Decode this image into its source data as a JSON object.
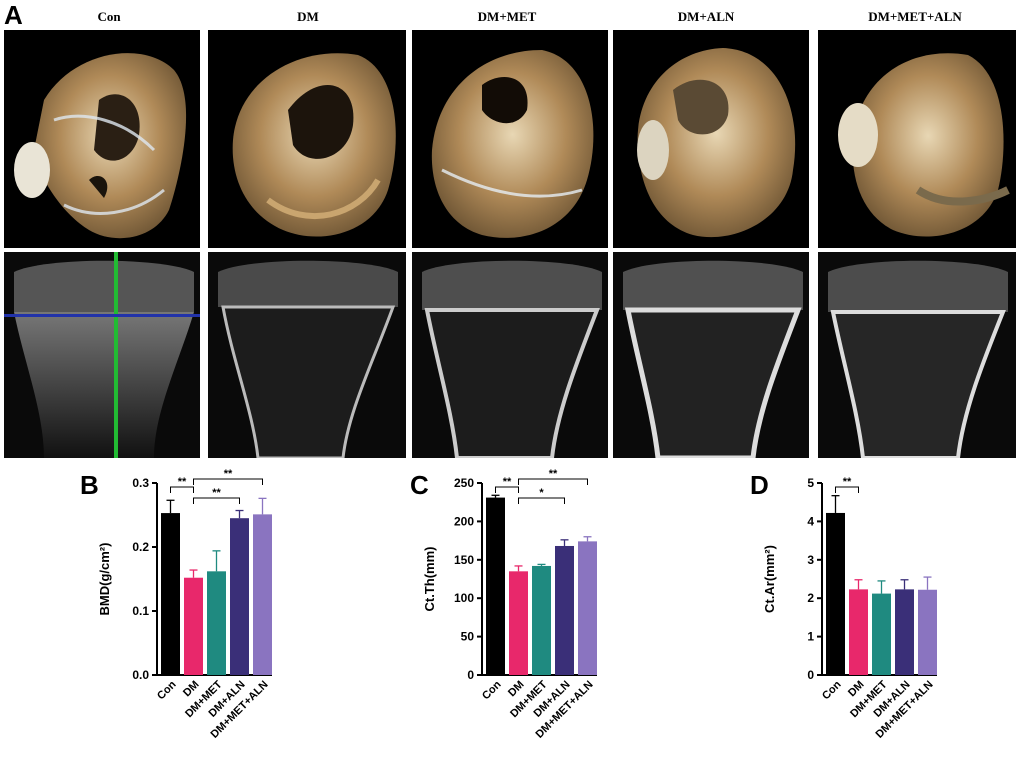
{
  "figure": {
    "panel_labels": {
      "a": "A",
      "b": "B",
      "c": "C",
      "d": "D"
    },
    "groups": [
      "Con",
      "DM",
      "DM+MET",
      "DM+ALN",
      "DM+MET+ALN"
    ],
    "group_colors": [
      "#000000",
      "#e8286b",
      "#1f8a80",
      "#3a2f78",
      "#8a74c0"
    ]
  },
  "chart_data": [
    {
      "panel": "B",
      "type": "bar",
      "categories": [
        "Con",
        "DM",
        "DM+MET",
        "DM+ALN",
        "DM+MET+ALN"
      ],
      "values": [
        0.253,
        0.152,
        0.162,
        0.245,
        0.251
      ],
      "errors": [
        0.02,
        0.012,
        0.032,
        0.012,
        0.025
      ],
      "ylabel": "BMD(g/cm²)",
      "ylim": [
        0,
        0.3
      ],
      "yticks": [
        "0.0",
        "0.1",
        "0.2",
        "0.3"
      ],
      "significance": [
        {
          "from": 0,
          "to": 1,
          "label": "**"
        },
        {
          "from": 1,
          "to": 4,
          "label": "**"
        },
        {
          "from": 1,
          "to": 3,
          "label": "**"
        }
      ]
    },
    {
      "panel": "C",
      "type": "bar",
      "categories": [
        "Con",
        "DM",
        "DM+MET",
        "DM+ALN",
        "DM+MET+ALN"
      ],
      "values": [
        231,
        135,
        142,
        168,
        174
      ],
      "errors": [
        3,
        7,
        2,
        8,
        6
      ],
      "ylabel": "Ct.Th(mm)",
      "ylim": [
        0,
        250
      ],
      "yticks": [
        "0",
        "50",
        "100",
        "150",
        "200",
        "250"
      ],
      "significance": [
        {
          "from": 0,
          "to": 1,
          "label": "**"
        },
        {
          "from": 1,
          "to": 4,
          "label": "**"
        },
        {
          "from": 1,
          "to": 3,
          "label": "*"
        }
      ]
    },
    {
      "panel": "D",
      "type": "bar",
      "categories": [
        "Con",
        "DM",
        "DM+MET",
        "DM+ALN",
        "DM+MET+ALN"
      ],
      "values": [
        4.22,
        2.23,
        2.12,
        2.23,
        2.22
      ],
      "errors": [
        0.45,
        0.25,
        0.33,
        0.25,
        0.33
      ],
      "ylabel": "Ct.Ar(mm²)",
      "ylim": [
        0,
        5
      ],
      "yticks": [
        "0",
        "1",
        "2",
        "3",
        "4",
        "5"
      ],
      "significance": [
        {
          "from": 0,
          "to": 1,
          "label": "**"
        }
      ]
    }
  ]
}
